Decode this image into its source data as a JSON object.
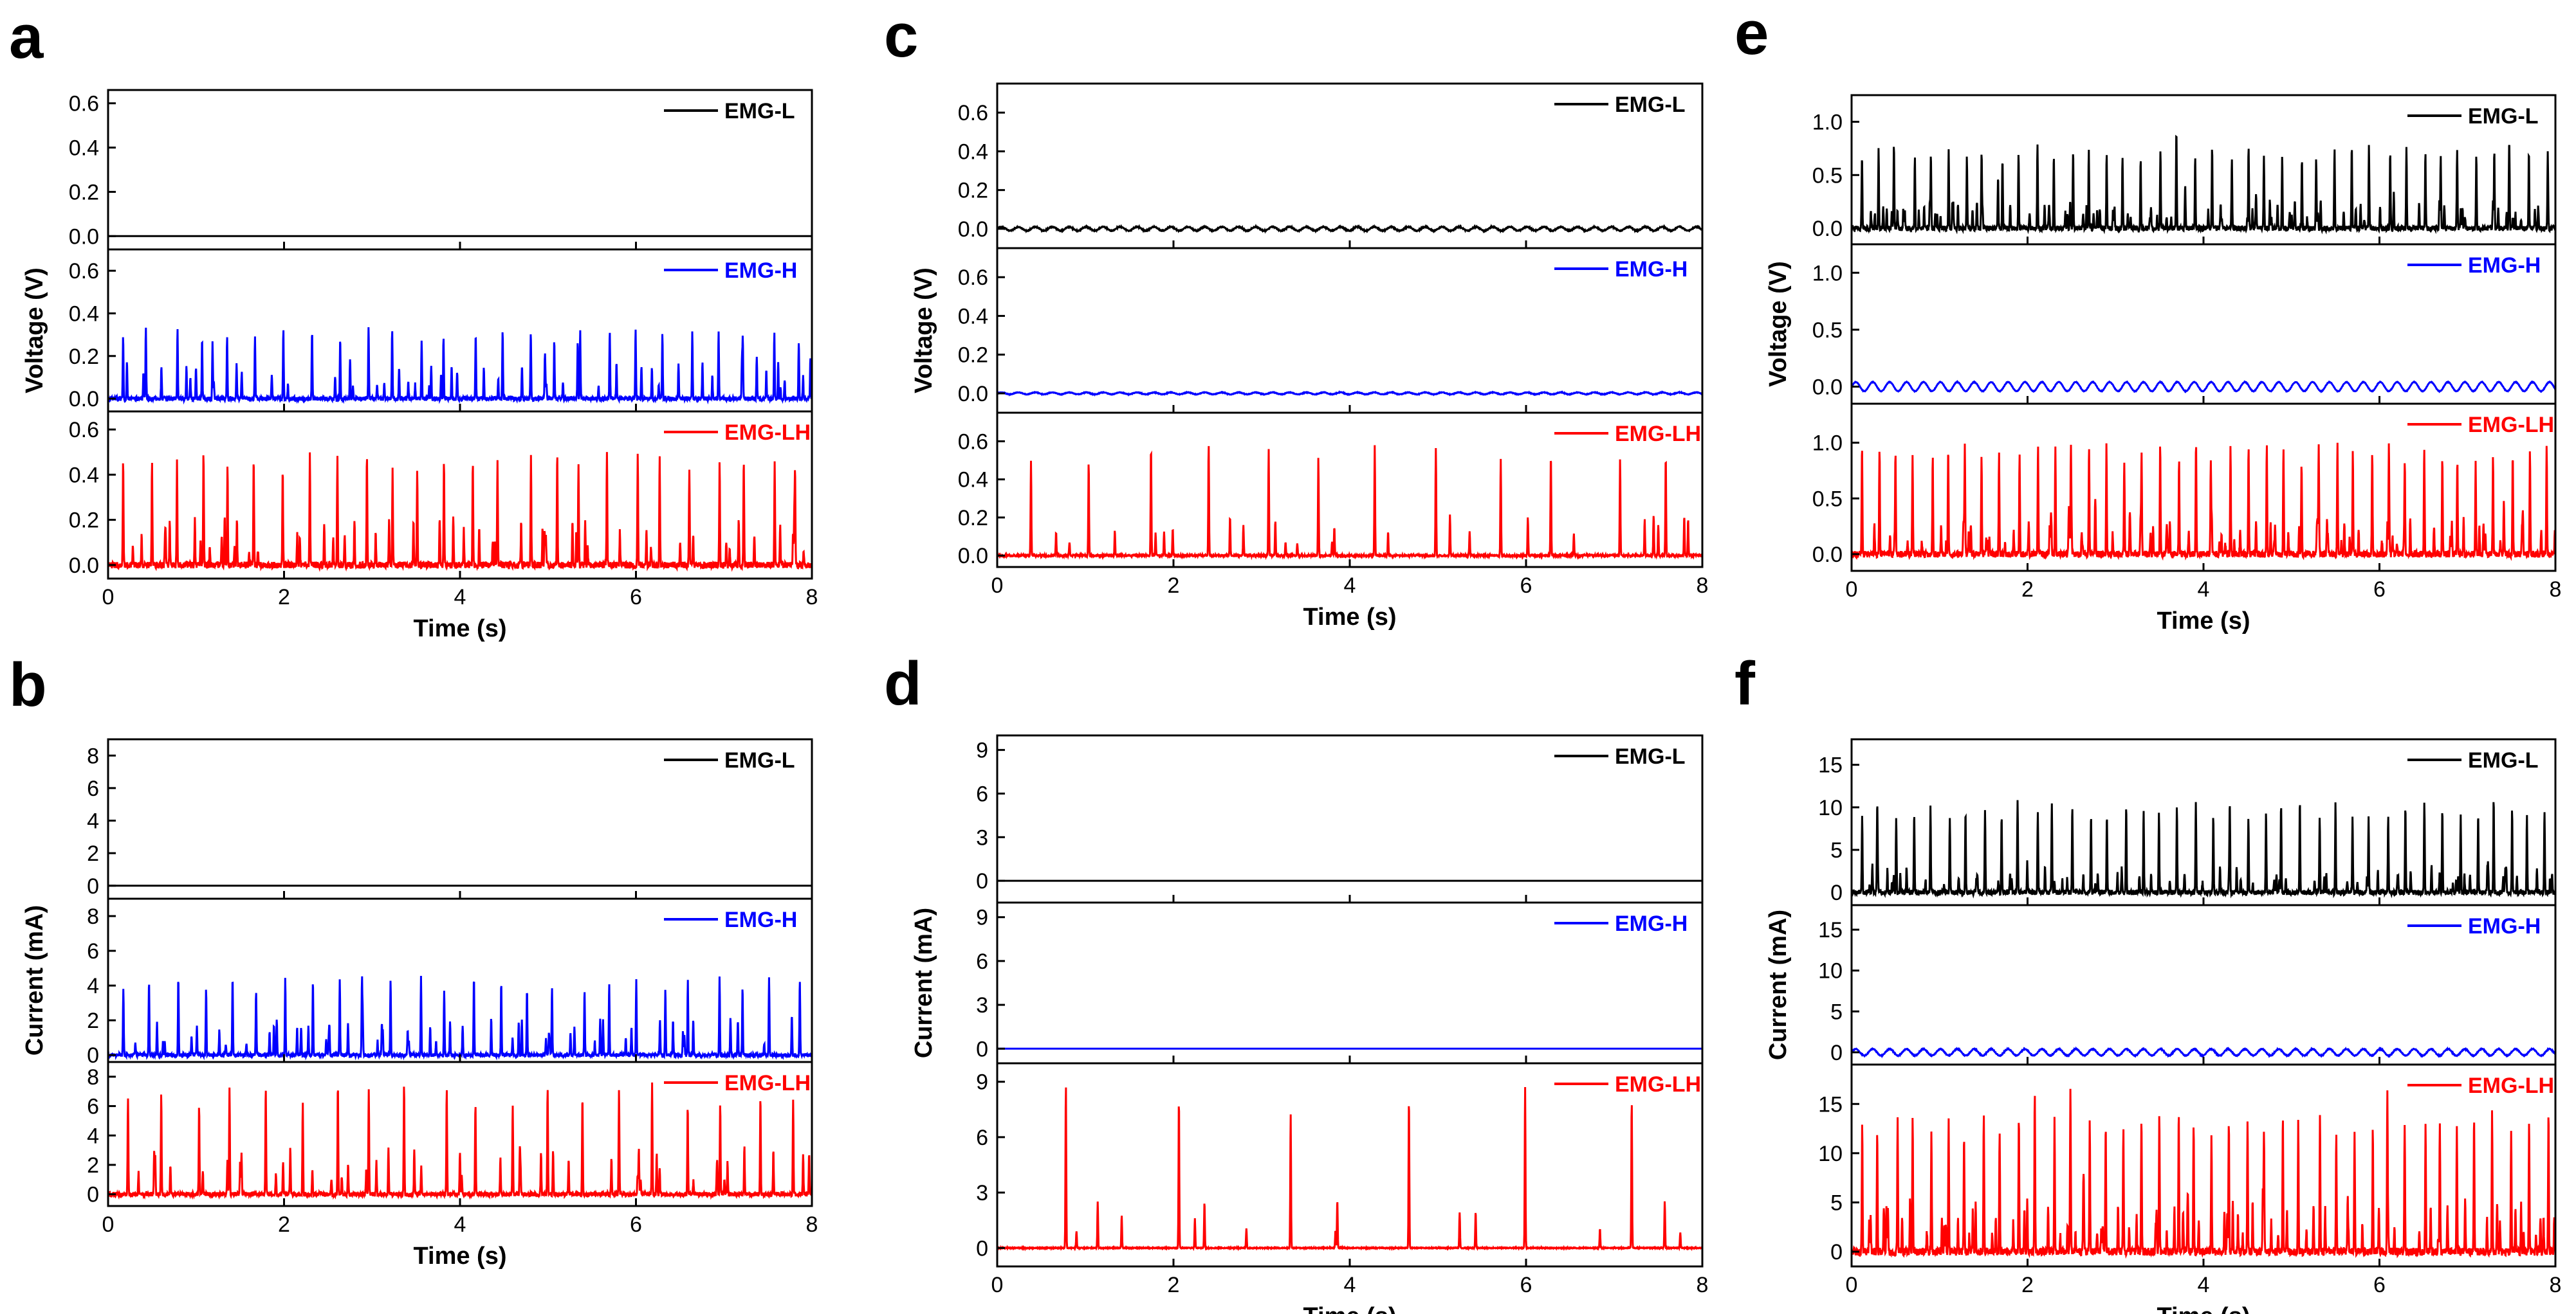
{
  "chart_data": [
    {
      "panel": "a",
      "type": "line",
      "quantity": "voltage",
      "ylabel": "Voltage (V)",
      "xlabel": "Time (s)",
      "xlim": [
        0,
        8
      ],
      "xticks": [
        0,
        2,
        4,
        6,
        8
      ],
      "subplots": [
        {
          "series": "EMG-L",
          "color": "#000000",
          "ylim": [
            -0.06,
            0.66
          ],
          "yticks": [
            0.0,
            0.2,
            0.4,
            0.6
          ],
          "tick_labels": [
            "0.0",
            "0.2",
            "0.4",
            "0.6"
          ],
          "peak": 0.0,
          "minor_peak": 0.0,
          "spikes": 0,
          "baseline_ripple": 0.0,
          "noise": 0.0
        },
        {
          "series": "EMG-H",
          "color": "#0000ff",
          "ylim": [
            -0.06,
            0.7
          ],
          "yticks": [
            0.0,
            0.2,
            0.4,
            0.6
          ],
          "tick_labels": [
            "0.0",
            "0.2",
            "0.4",
            "0.6"
          ],
          "peak": 0.33,
          "minor_peak": 0.18,
          "spikes": 26,
          "baseline_ripple": 0.0,
          "noise": 0.02
        },
        {
          "series": "EMG-LH",
          "color": "#ff0000",
          "ylim": [
            -0.06,
            0.68
          ],
          "yticks": [
            0.0,
            0.2,
            0.4,
            0.6
          ],
          "tick_labels": [
            "0.0",
            "0.2",
            "0.4",
            "0.6"
          ],
          "peak": 0.5,
          "minor_peak": 0.2,
          "spikes": 26,
          "baseline_ripple": 0.0,
          "noise": 0.03
        }
      ]
    },
    {
      "panel": "b",
      "type": "line",
      "quantity": "current",
      "ylabel": "Current (mA)",
      "xlabel": "Time (s)",
      "xlim": [
        0,
        8
      ],
      "xticks": [
        0,
        2,
        4,
        6,
        8
      ],
      "subplots": [
        {
          "series": "EMG-L",
          "color": "#000000",
          "ylim": [
            -0.8,
            9
          ],
          "yticks": [
            0,
            2,
            4,
            6,
            8
          ],
          "tick_labels": [
            "0",
            "2",
            "4",
            "6",
            "8"
          ],
          "peak": 0,
          "minor_peak": 0,
          "spikes": 0,
          "baseline_ripple": 0,
          "noise": 0
        },
        {
          "series": "EMG-H",
          "color": "#0000ff",
          "ylim": [
            -0.4,
            9
          ],
          "yticks": [
            0,
            2,
            4,
            6,
            8
          ],
          "tick_labels": [
            "0",
            "2",
            "4",
            "6",
            "8"
          ],
          "peak": 4.5,
          "minor_peak": 2.0,
          "spikes": 26,
          "baseline_ripple": 0,
          "noise": 0.2
        },
        {
          "series": "EMG-LH",
          "color": "#ff0000",
          "ylim": [
            -0.8,
            9
          ],
          "yticks": [
            0,
            2,
            4,
            6,
            8
          ],
          "tick_labels": [
            "0",
            "2",
            "4",
            "6",
            "8"
          ],
          "peak": 7.4,
          "minor_peak": 3.0,
          "spikes": 20,
          "baseline_ripple": 0,
          "noise": 0.3
        }
      ]
    },
    {
      "panel": "c",
      "type": "line",
      "quantity": "voltage",
      "ylabel": "Voltage (V)",
      "xlabel": "Time (s)",
      "xlim": [
        0,
        8
      ],
      "xticks": [
        0,
        2,
        4,
        6,
        8
      ],
      "subplots": [
        {
          "series": "EMG-L",
          "color": "#000000",
          "ylim": [
            -0.1,
            0.75
          ],
          "yticks": [
            0.0,
            0.2,
            0.4,
            0.6
          ],
          "tick_labels": [
            "0.0",
            "0.2",
            "0.4",
            "0.6"
          ],
          "peak": 0.0,
          "minor_peak": 0.0,
          "spikes": 0,
          "baseline_ripple": 0.01,
          "noise": 0.005
        },
        {
          "series": "EMG-H",
          "color": "#0000ff",
          "ylim": [
            -0.1,
            0.75
          ],
          "yticks": [
            0.0,
            0.2,
            0.4,
            0.6
          ],
          "tick_labels": [
            "0.0",
            "0.2",
            "0.4",
            "0.6"
          ],
          "peak": 0.0,
          "minor_peak": 0.0,
          "spikes": 0,
          "baseline_ripple": 0.005,
          "noise": 0.003
        },
        {
          "series": "EMG-LH",
          "color": "#ff0000",
          "ylim": [
            -0.06,
            0.75
          ],
          "yticks": [
            0.0,
            0.2,
            0.4,
            0.6
          ],
          "tick_labels": [
            "0.0",
            "0.2",
            "0.4",
            "0.6"
          ],
          "peak": 0.58,
          "minor_peak": 0.2,
          "spikes": 12,
          "baseline_ripple": 0.0,
          "noise": 0.01
        }
      ]
    },
    {
      "panel": "d",
      "type": "line",
      "quantity": "current",
      "ylabel": "Current (mA)",
      "xlabel": "Time (s)",
      "xlim": [
        0,
        8
      ],
      "xticks": [
        0,
        2,
        4,
        6,
        8
      ],
      "subplots": [
        {
          "series": "EMG-L",
          "color": "#000000",
          "ylim": [
            -1.5,
            10
          ],
          "yticks": [
            0,
            3,
            6,
            9
          ],
          "tick_labels": [
            "0",
            "3",
            "6",
            "9"
          ],
          "peak": 0,
          "minor_peak": 0,
          "spikes": 0,
          "baseline_ripple": 0,
          "noise": 0
        },
        {
          "series": "EMG-H",
          "color": "#0000ff",
          "ylim": [
            -1.0,
            10
          ],
          "yticks": [
            0,
            3,
            6,
            9
          ],
          "tick_labels": [
            "0",
            "3",
            "6",
            "9"
          ],
          "peak": 0,
          "minor_peak": 0,
          "spikes": 0,
          "baseline_ripple": 0,
          "noise": 0
        },
        {
          "series": "EMG-LH",
          "color": "#ff0000",
          "ylim": [
            -1.0,
            10
          ],
          "yticks": [
            0,
            3,
            6,
            9
          ],
          "tick_labels": [
            "0",
            "3",
            "6",
            "9"
          ],
          "peak": 8.8,
          "minor_peak": 2.5,
          "spikes": 6,
          "baseline_ripple": 0,
          "noise": 0.05
        }
      ]
    },
    {
      "panel": "e",
      "type": "line",
      "quantity": "voltage",
      "ylabel": "Voltage (V)",
      "xlabel": "Time (s)",
      "xlim": [
        0,
        8
      ],
      "xticks": [
        0,
        2,
        4,
        6,
        8
      ],
      "subplots": [
        {
          "series": "EMG-L",
          "color": "#000000",
          "ylim": [
            -0.15,
            1.25
          ],
          "yticks": [
            0.0,
            0.5,
            1.0
          ],
          "tick_labels": [
            "0.0",
            "0.5",
            "1.0"
          ],
          "peak": 0.78,
          "minor_peak": 0.25,
          "spikes": 40,
          "baseline_ripple": 0.0,
          "noise": 0.05
        },
        {
          "series": "EMG-H",
          "color": "#0000ff",
          "ylim": [
            -0.15,
            1.25
          ],
          "yticks": [
            0.0,
            0.5,
            1.0
          ],
          "tick_labels": [
            "0.0",
            "0.5",
            "1.0"
          ],
          "peak": 0.0,
          "minor_peak": 0.0,
          "spikes": 0,
          "baseline_ripple": 0.04,
          "noise": 0.005
        },
        {
          "series": "EMG-LH",
          "color": "#ff0000",
          "ylim": [
            -0.15,
            1.35
          ],
          "yticks": [
            0.0,
            0.5,
            1.0
          ],
          "tick_labels": [
            "0.0",
            "0.5",
            "1.0"
          ],
          "peak": 1.0,
          "minor_peak": 0.3,
          "spikes": 40,
          "baseline_ripple": 0.0,
          "noise": 0.06
        }
      ]
    },
    {
      "panel": "f",
      "type": "line",
      "quantity": "current",
      "ylabel": "Current (mA)",
      "xlabel": "Time (s)",
      "xlim": [
        0,
        8
      ],
      "xticks": [
        0,
        2,
        4,
        6,
        8
      ],
      "subplots": [
        {
          "series": "EMG-L",
          "color": "#000000",
          "ylim": [
            -1.5,
            18
          ],
          "yticks": [
            0,
            5,
            10,
            15
          ],
          "tick_labels": [
            "0",
            "5",
            "10",
            "15"
          ],
          "peak": 10.8,
          "minor_peak": 3.0,
          "spikes": 40,
          "baseline_ripple": 0,
          "noise": 0.6
        },
        {
          "series": "EMG-H",
          "color": "#0000ff",
          "ylim": [
            -1.5,
            18
          ],
          "yticks": [
            0,
            5,
            10,
            15
          ],
          "tick_labels": [
            "0",
            "5",
            "10",
            "15"
          ],
          "peak": 0,
          "minor_peak": 0,
          "spikes": 0,
          "baseline_ripple": 0.4,
          "noise": 0.1
        },
        {
          "series": "EMG-LH",
          "color": "#ff0000",
          "ylim": [
            -1.5,
            19
          ],
          "yticks": [
            0,
            5,
            10,
            15
          ],
          "tick_labels": [
            "0",
            "5",
            "10",
            "15"
          ],
          "peak": 14.0,
          "minor_peak": 5.0,
          "spikes": 40,
          "baseline_ripple": 0,
          "noise": 0.8
        }
      ]
    }
  ]
}
